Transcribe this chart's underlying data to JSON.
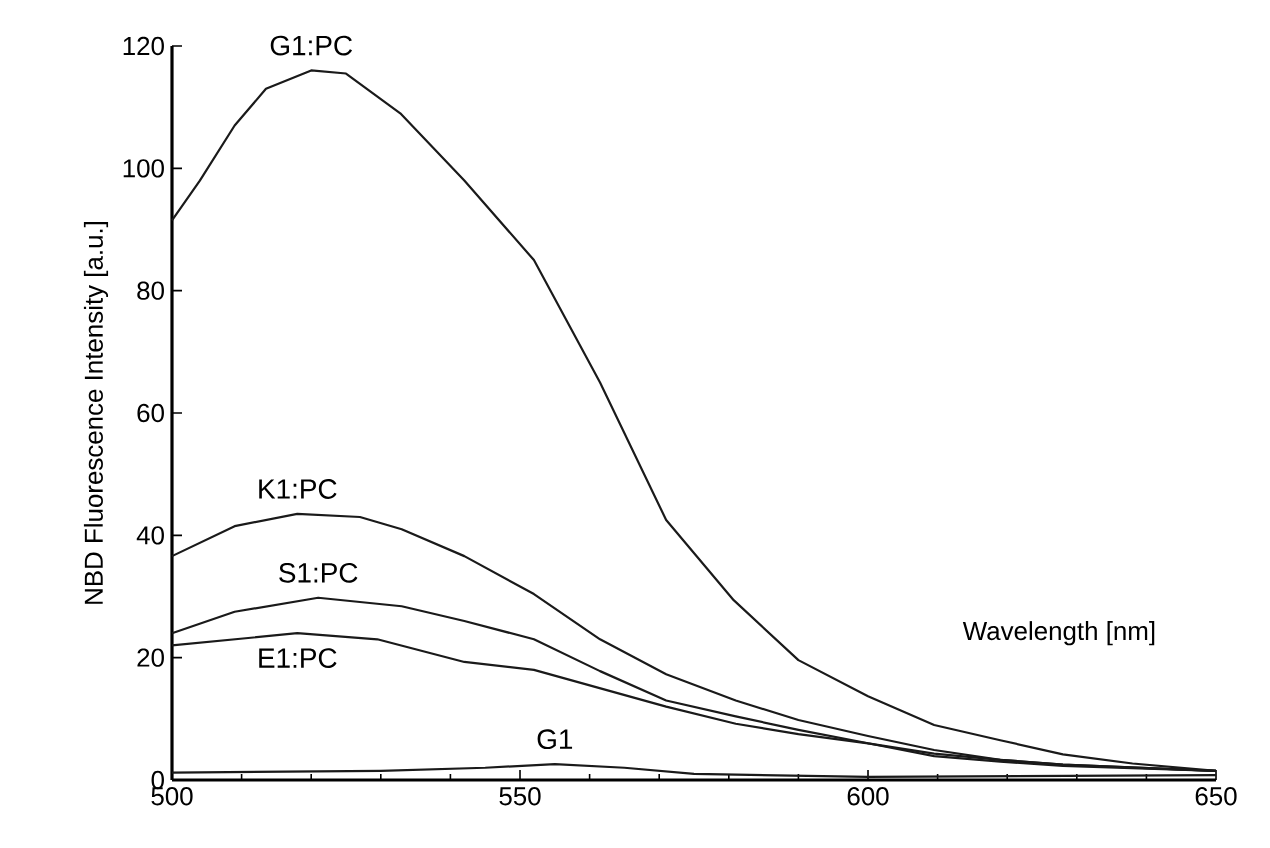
{
  "chart_data": {
    "type": "line",
    "xlabel": "Wavelength [nm]",
    "ylabel": "NBD Fluorescence Intensity [a.u.]",
    "xlim": [
      500,
      650
    ],
    "ylim": [
      0,
      120
    ],
    "xticks": [
      500,
      550,
      600,
      650
    ],
    "yticks": [
      0,
      20,
      40,
      60,
      80,
      100,
      120
    ],
    "grid": false,
    "legend": false,
    "marker": "none",
    "line_style": "solid",
    "series": [
      {
        "name": "G1:PC",
        "color": "#1a1a1a",
        "x": [
          500,
          504,
          509,
          513.5,
          520,
          525,
          532.8,
          542,
          552,
          561.5,
          571,
          580.7,
          590,
          600,
          609.5,
          619,
          628,
          638,
          650
        ],
        "values": [
          91.5,
          98,
          107,
          113,
          116,
          115.5,
          109,
          98,
          85,
          65,
          42.5,
          29.4,
          19.6,
          13.7,
          9,
          6.5,
          4.2,
          2.7,
          1.5
        ]
      },
      {
        "name": "K1:PC",
        "color": "#1a1a1a",
        "x": [
          500,
          509,
          518,
          527,
          533,
          542,
          552,
          561.5,
          571,
          581,
          590,
          600,
          609.5,
          619,
          628,
          650
        ],
        "values": [
          36.6,
          41.5,
          43.5,
          43,
          41,
          36.6,
          30.4,
          23,
          17.3,
          13,
          9.8,
          7.2,
          4.9,
          3.3,
          2.5,
          1.5
        ]
      },
      {
        "name": "S1:PC",
        "color": "#1a1a1a",
        "x": [
          500,
          509,
          521,
          533,
          542,
          552,
          561.5,
          571,
          581,
          590,
          600,
          609.5,
          619,
          628,
          650
        ],
        "values": [
          24,
          27.5,
          29.8,
          28.4,
          26,
          23,
          17.8,
          13,
          10.4,
          8.2,
          6,
          4.3,
          3.3,
          2.5,
          1.5
        ]
      },
      {
        "name": "E1:PC",
        "color": "#1a1a1a",
        "x": [
          500,
          518,
          529.5,
          542,
          552,
          561.5,
          571,
          581,
          590,
          600,
          609.5,
          619,
          628,
          650
        ],
        "values": [
          22,
          24,
          23,
          19.3,
          18,
          15,
          12,
          9.2,
          7.5,
          6,
          3.9,
          3,
          2.3,
          1.5
        ]
      },
      {
        "name": "G1",
        "color": "#1a1a1a",
        "x": [
          500,
          530,
          545,
          555,
          565,
          575,
          600,
          650
        ],
        "values": [
          1.2,
          1.5,
          2,
          2.6,
          2,
          1,
          0.5,
          0.8
        ]
      }
    ]
  }
}
